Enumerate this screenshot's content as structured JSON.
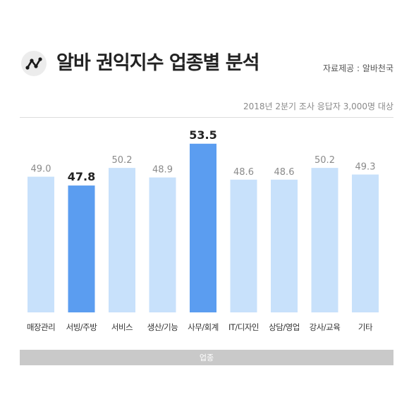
{
  "header": {
    "title": "알바 권익지수 업종별 분석",
    "source": "자료제공 : 알바천국",
    "subtitle": "2018년 2분기 조사 응답자 3,000명 대상",
    "logo_icon": "trend-line-icon"
  },
  "chart_data": {
    "type": "bar",
    "title": "알바 권익지수 업종별 분석",
    "xlabel": "업종",
    "ylabel": "",
    "categories": [
      "매장관리",
      "서빙/주방",
      "서비스",
      "생산/기능",
      "사무/회계",
      "IT/디자인",
      "상담/영업",
      "강사/교육",
      "기타"
    ],
    "values": [
      49.0,
      47.8,
      50.2,
      48.9,
      53.5,
      48.6,
      48.6,
      50.2,
      49.3
    ],
    "value_labels": [
      "49.0",
      "47.8",
      "50.2",
      "48.9",
      "53.5",
      "48.6",
      "48.6",
      "50.2",
      "49.3"
    ],
    "highlighted": [
      "서빙/주방",
      "사무/회계"
    ],
    "grid": false,
    "legend": "none"
  },
  "colors": {
    "bar_default": "#c8e1fb",
    "bar_highlight": "#5b9df0",
    "label_default": "#8a8a8a",
    "label_highlight": "#222222",
    "category_label": "#333333",
    "axis_band": "#c9c9c9",
    "logo_bg": "#ececec"
  }
}
